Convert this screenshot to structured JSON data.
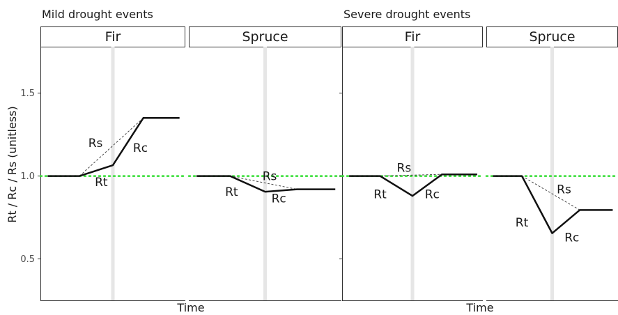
{
  "chart_data": {
    "type": "line",
    "ylabel": "Rt / Rc / Rs (unitless)",
    "xlabel": "Time",
    "ylim": [
      0.25,
      1.78
    ],
    "y_ticks": [
      0.5,
      1.0,
      1.5
    ],
    "y_tick_labels": [
      "0.5",
      "1.0",
      "1.5"
    ],
    "x_range": [
      0,
      1
    ],
    "reference_line": {
      "y": 1.0,
      "color": "#33dd33",
      "style": "dotted"
    },
    "drought_marker": {
      "x": 0.5,
      "color": "#e6e6e6"
    },
    "colors": {
      "series": "#111111",
      "dashed": "#444444",
      "strip_border": "#333333"
    },
    "groups": [
      {
        "title": "Mild drought events",
        "panels": [
          {
            "title": "Fir",
            "series": [
              {
                "x": [
                  0.05,
                  0.27,
                  0.5,
                  0.71,
                  0.96
                ],
                "values": [
                  1.0,
                  1.0,
                  1.065,
                  1.35,
                  1.35
                ]
              }
            ],
            "dashed": {
              "x": [
                0.27,
                0.71
              ],
              "values": [
                1.0,
                1.35
              ]
            },
            "annotations": [
              {
                "text": "Rs",
                "x": 0.38,
                "y": 1.2
              },
              {
                "text": "Rc",
                "x": 0.69,
                "y": 1.17
              },
              {
                "text": "Rt",
                "x": 0.42,
                "y": 0.965
              }
            ]
          },
          {
            "title": "Spruce",
            "series": [
              {
                "x": [
                  0.05,
                  0.27,
                  0.5,
                  0.71,
                  0.96
                ],
                "values": [
                  1.0,
                  1.0,
                  0.905,
                  0.92,
                  0.92
                ]
              }
            ],
            "dashed": {
              "x": [
                0.27,
                0.71
              ],
              "values": [
                1.0,
                0.92
              ]
            },
            "annotations": [
              {
                "text": "Rs",
                "x": 0.53,
                "y": 1.0
              },
              {
                "text": "Rt",
                "x": 0.28,
                "y": 0.905
              },
              {
                "text": "Rc",
                "x": 0.59,
                "y": 0.865
              }
            ]
          }
        ]
      },
      {
        "title": "Severe drought events",
        "panels": [
          {
            "title": "Fir",
            "series": [
              {
                "x": [
                  0.05,
                  0.27,
                  0.5,
                  0.71,
                  0.96
                ],
                "values": [
                  1.0,
                  1.0,
                  0.88,
                  1.01,
                  1.01
                ]
              }
            ],
            "dashed": {
              "x": [
                0.27,
                0.71
              ],
              "values": [
                1.0,
                1.01
              ]
            },
            "annotations": [
              {
                "text": "Rs",
                "x": 0.44,
                "y": 1.05
              },
              {
                "text": "Rt",
                "x": 0.27,
                "y": 0.89
              },
              {
                "text": "Rc",
                "x": 0.64,
                "y": 0.89
              }
            ]
          },
          {
            "title": "Spruce",
            "series": [
              {
                "x": [
                  0.05,
                  0.27,
                  0.5,
                  0.71,
                  0.96
                ],
                "values": [
                  1.0,
                  1.0,
                  0.655,
                  0.795,
                  0.795
                ]
              }
            ],
            "dashed": {
              "x": [
                0.27,
                0.71
              ],
              "values": [
                1.0,
                0.795
              ]
            },
            "annotations": [
              {
                "text": "Rs",
                "x": 0.59,
                "y": 0.92
              },
              {
                "text": "Rt",
                "x": 0.27,
                "y": 0.72
              },
              {
                "text": "Rc",
                "x": 0.65,
                "y": 0.63
              }
            ]
          }
        ]
      }
    ]
  }
}
